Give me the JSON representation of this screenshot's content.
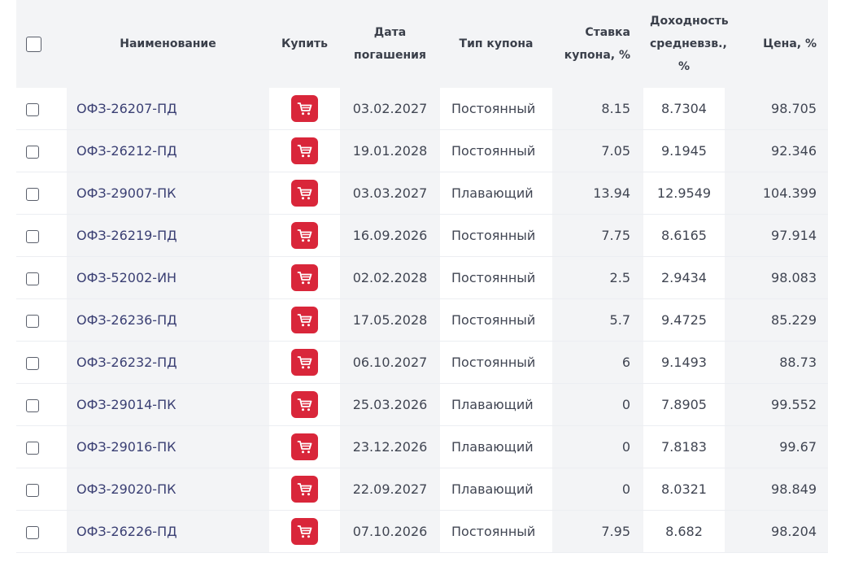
{
  "header": {
    "name": "Наименование",
    "buy": "Купить",
    "maturity_line1": "Дата",
    "maturity_line2": "погашения",
    "coupon_type": "Тип купона",
    "coupon_rate_line1": "Ставка",
    "coupon_rate_line2": "купона, %",
    "yield_line1": "Доходность",
    "yield_line2": "средневзв.,",
    "yield_line3": "%",
    "price": "Цена, %"
  },
  "icons": {
    "cart": "shopping-cart-icon",
    "checkbox": "checkbox"
  },
  "colors": {
    "buy_button": "#d9263a",
    "bond_link": "#3a3f73",
    "header_bg": "#f3f4f6"
  },
  "rows": [
    {
      "name": "ОФЗ-26207-ПД",
      "maturity": "03.02.2027",
      "coupon_type": "Постоянный",
      "coupon_rate": "8.15",
      "yield": "8.7304",
      "price": "98.705"
    },
    {
      "name": "ОФЗ-26212-ПД",
      "maturity": "19.01.2028",
      "coupon_type": "Постоянный",
      "coupon_rate": "7.05",
      "yield": "9.1945",
      "price": "92.346"
    },
    {
      "name": "ОФЗ-29007-ПК",
      "maturity": "03.03.2027",
      "coupon_type": "Плавающий",
      "coupon_rate": "13.94",
      "yield": "12.9549",
      "price": "104.399"
    },
    {
      "name": "ОФЗ-26219-ПД",
      "maturity": "16.09.2026",
      "coupon_type": "Постоянный",
      "coupon_rate": "7.75",
      "yield": "8.6165",
      "price": "97.914"
    },
    {
      "name": "ОФЗ-52002-ИН",
      "maturity": "02.02.2028",
      "coupon_type": "Постоянный",
      "coupon_rate": "2.5",
      "yield": "2.9434",
      "price": "98.083"
    },
    {
      "name": "ОФЗ-26236-ПД",
      "maturity": "17.05.2028",
      "coupon_type": "Постоянный",
      "coupon_rate": "5.7",
      "yield": "9.4725",
      "price": "85.229"
    },
    {
      "name": "ОФЗ-26232-ПД",
      "maturity": "06.10.2027",
      "coupon_type": "Постоянный",
      "coupon_rate": "6",
      "yield": "9.1493",
      "price": "88.73"
    },
    {
      "name": "ОФЗ-29014-ПК",
      "maturity": "25.03.2026",
      "coupon_type": "Плавающий",
      "coupon_rate": "0",
      "yield": "7.8905",
      "price": "99.552"
    },
    {
      "name": "ОФЗ-29016-ПК",
      "maturity": "23.12.2026",
      "coupon_type": "Плавающий",
      "coupon_rate": "0",
      "yield": "7.8183",
      "price": "99.67"
    },
    {
      "name": "ОФЗ-29020-ПК",
      "maturity": "22.09.2027",
      "coupon_type": "Плавающий",
      "coupon_rate": "0",
      "yield": "8.0321",
      "price": "98.849"
    },
    {
      "name": "ОФЗ-26226-ПД",
      "maturity": "07.10.2026",
      "coupon_type": "Постоянный",
      "coupon_rate": "7.95",
      "yield": "8.682",
      "price": "98.204"
    }
  ]
}
